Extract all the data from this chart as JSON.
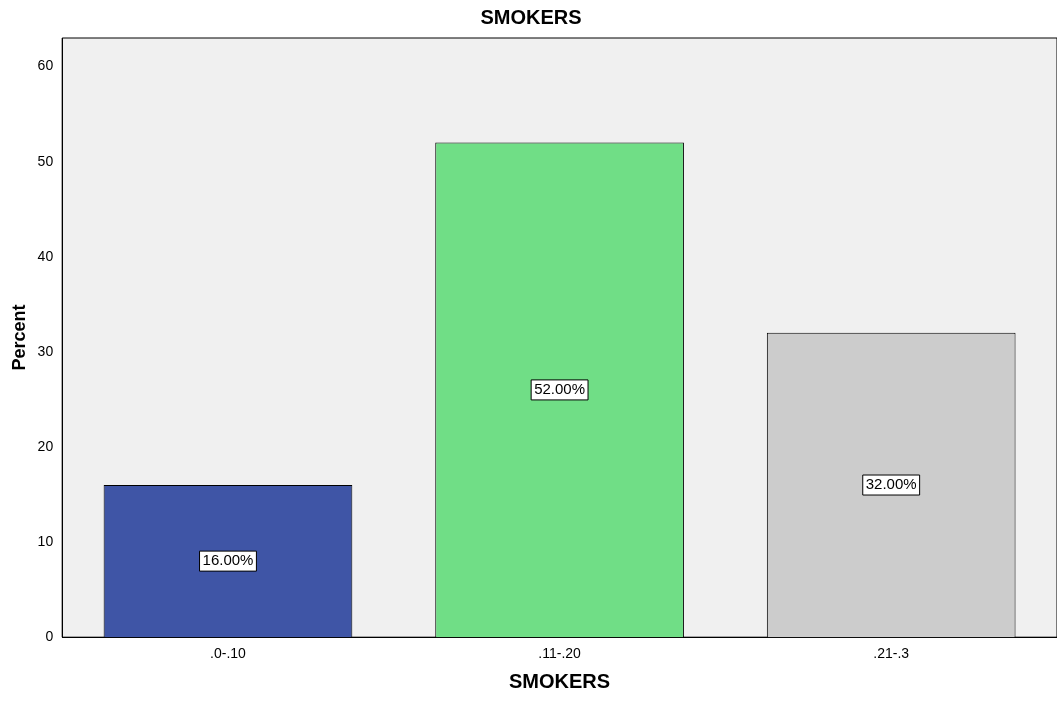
{
  "chart_data": {
    "type": "bar",
    "title": "SMOKERS",
    "xlabel": "SMOKERS",
    "ylabel": "Percent",
    "categories": [
      ".0-.10",
      ".11-.20",
      ".21-.3"
    ],
    "values": [
      16,
      52,
      32
    ],
    "colors": [
      "#3f55a6",
      "#70de86",
      "#cccccc"
    ],
    "value_labels": [
      "16.00%",
      "52.00%",
      "32.00%"
    ],
    "ylim": [
      0,
      63
    ],
    "yticks": [
      0,
      10,
      20,
      30,
      40,
      50,
      60
    ],
    "grid": false,
    "legend": false
  }
}
